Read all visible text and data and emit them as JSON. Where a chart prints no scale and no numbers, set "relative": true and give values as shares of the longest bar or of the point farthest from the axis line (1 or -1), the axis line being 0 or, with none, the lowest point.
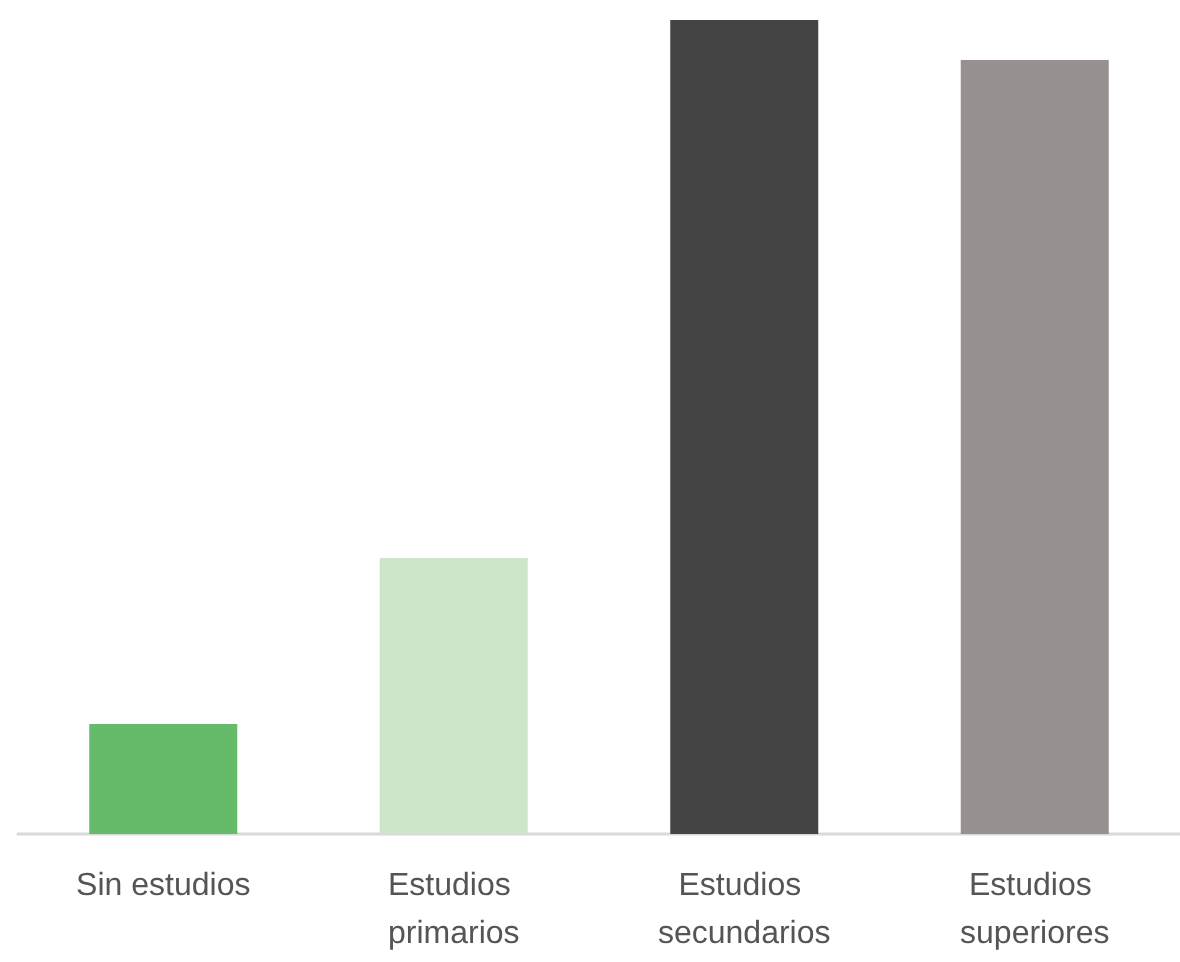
{
  "chart_data": {
    "type": "bar",
    "relative": true,
    "categories": [
      "Sin estudios",
      "Estudios primarios",
      "Estudios secundarios",
      "Estudios superiores"
    ],
    "values": [
      0.135,
      0.339,
      1,
      0.951
    ],
    "colors": [
      "#66bb6a",
      "#cde5c9",
      "#444444",
      "#96918f"
    ]
  }
}
